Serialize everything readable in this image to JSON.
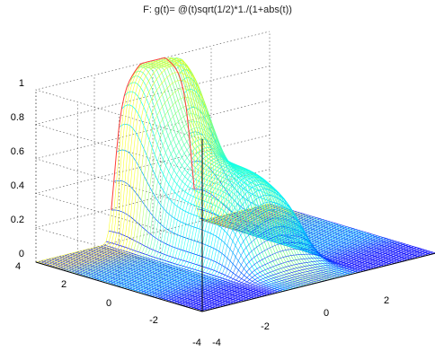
{
  "chart_data": {
    "type": "surface",
    "title": "F: g(t)= @(t)sqrt(1/2)*1./(1+abs(t))",
    "xlabel": "",
    "ylabel": "",
    "zlabel": "",
    "zlim": [
      0,
      1
    ],
    "xlim": [
      -4,
      4
    ],
    "ylim": [
      -4,
      4
    ],
    "z_ticks": [
      "0",
      "0.2",
      "0.4",
      "0.6",
      "0.8",
      "1"
    ],
    "y_ticks": [
      "4",
      "2",
      "0",
      "-2",
      "-4"
    ],
    "x_ticks": [
      "-4",
      "-2",
      "0",
      "2"
    ],
    "grid": true,
    "colormap": "jet",
    "surface_peak": 1.0,
    "plateau_level": 0.45,
    "mesh_color": "#1a24a8",
    "ridge_color": "#4fd8ff",
    "peak_color": "#ff3c3c"
  }
}
